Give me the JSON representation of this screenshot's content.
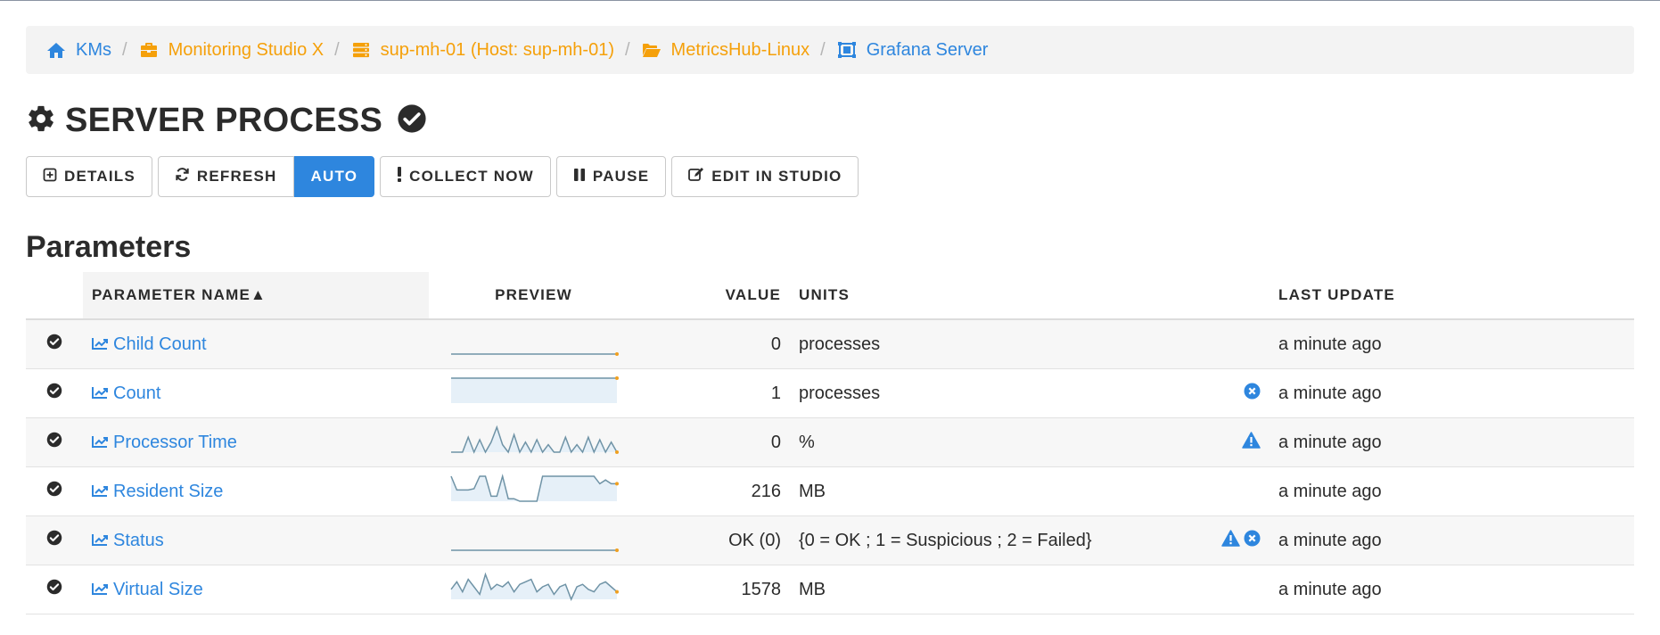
{
  "breadcrumb": [
    {
      "label": "KMs",
      "icon": "home-icon",
      "color": "blue"
    },
    {
      "label": "Monitoring Studio X",
      "icon": "toolbox-icon",
      "color": "orange"
    },
    {
      "label": "sup-mh-01 (Host: sup-mh-01)",
      "icon": "server-icon",
      "color": "orange"
    },
    {
      "label": "MetricsHub-Linux",
      "icon": "folder-open-icon",
      "color": "orange"
    },
    {
      "label": "Grafana Server",
      "icon": "object-group-icon",
      "color": "blue"
    }
  ],
  "breadcrumb_sep": "/",
  "page": {
    "title": "SERVER PROCESS",
    "status": "ok"
  },
  "toolbar": {
    "details": "DETAILS",
    "refresh": "REFRESH",
    "auto": "AUTO",
    "collect_now": "COLLECT NOW",
    "pause": "PAUSE",
    "edit_in_studio": "EDIT IN STUDIO"
  },
  "params": {
    "heading": "Parameters",
    "columns": {
      "name": "PARAMETER NAME▲",
      "preview": "PREVIEW",
      "value": "VALUE",
      "units": "UNITS",
      "last_update": "LAST UPDATE"
    },
    "rows": [
      {
        "name": "Child Count",
        "value": "0",
        "units": "processes",
        "flags": [],
        "last_update": "a minute ago",
        "spark": [
          0,
          0,
          0,
          0,
          0,
          0,
          0,
          0,
          0,
          0,
          0,
          0,
          0,
          0,
          0,
          0,
          0,
          0,
          0,
          0,
          0,
          0,
          0,
          0,
          0,
          0,
          0,
          0,
          0,
          0
        ]
      },
      {
        "name": "Count",
        "value": "1",
        "units": "processes",
        "flags": [
          "error"
        ],
        "last_update": "a minute ago",
        "spark": [
          1,
          1,
          1,
          1,
          1,
          1,
          1,
          1,
          1,
          1,
          1,
          1,
          1,
          1,
          1,
          1,
          1,
          1,
          1,
          1,
          1,
          1,
          1,
          1,
          1,
          1,
          1,
          1,
          1,
          1
        ]
      },
      {
        "name": "Processor Time",
        "value": "0",
        "units": "%",
        "flags": [
          "warning"
        ],
        "last_update": "a minute ago",
        "spark": [
          0,
          0,
          0,
          0.6,
          0,
          0.5,
          0,
          0.4,
          1,
          0.3,
          0,
          0.7,
          0,
          0.4,
          0,
          0.5,
          0,
          0.3,
          0,
          0,
          0.6,
          0,
          0.3,
          0,
          0.6,
          0,
          0.5,
          0,
          0.4,
          0
        ]
      },
      {
        "name": "Resident Size",
        "value": "216",
        "units": "MB",
        "flags": [],
        "last_update": "a minute ago",
        "spark": [
          1,
          0.45,
          0.45,
          0.45,
          0.5,
          1,
          1,
          0.2,
          0.2,
          1,
          0.1,
          0.1,
          0,
          0,
          0,
          0,
          1,
          1,
          1,
          1,
          1,
          1,
          1,
          1,
          1,
          1,
          0.7,
          0.85,
          0.7,
          0.7
        ]
      },
      {
        "name": "Status",
        "value": "OK (0)",
        "units": "{0 = OK ; 1 = Suspicious ; 2 = Failed}",
        "flags": [
          "warning",
          "error"
        ],
        "last_update": "a minute ago",
        "spark": [
          0,
          0,
          0,
          0,
          0,
          0,
          0,
          0,
          0,
          0,
          0,
          0,
          0,
          0,
          0,
          0,
          0,
          0,
          0,
          0,
          0,
          0,
          0,
          0,
          0,
          0,
          0,
          0,
          0,
          0
        ]
      },
      {
        "name": "Virtual Size",
        "value": "1578",
        "units": "MB",
        "flags": [],
        "last_update": "a minute ago",
        "spark": [
          0.4,
          0.7,
          0.3,
          0.8,
          0.5,
          0.2,
          1,
          0.4,
          0.6,
          0.5,
          0.7,
          0.3,
          0.6,
          0.7,
          0.8,
          0.3,
          0.5,
          0.6,
          0.2,
          0.5,
          0.6,
          0,
          0.5,
          0.6,
          0.4,
          0.3,
          0.6,
          0.7,
          0.5,
          0.3
        ]
      }
    ]
  },
  "colors": {
    "link": "#2e86de",
    "folder": "#f5a00a",
    "spark": "#6f93a6",
    "spark_fill": "#e6f0f8",
    "spark_end": "#f0a020"
  }
}
